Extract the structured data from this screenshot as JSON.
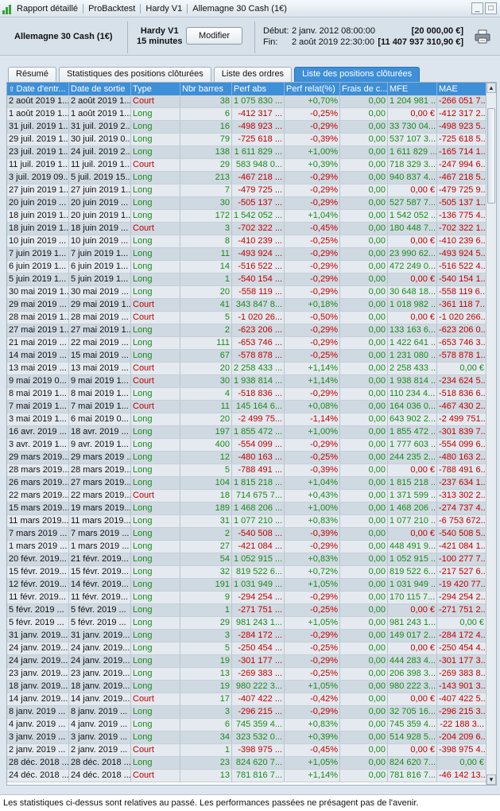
{
  "titlebar": {
    "crumbs": [
      "Rapport détaillé",
      "ProBacktest",
      "Hardy V1",
      "Allemagne 30 Cash (1€)"
    ],
    "buttons": [
      "_",
      "□"
    ]
  },
  "header": {
    "instrument": "Allemagne 30 Cash (1€)",
    "strategy_name": "Hardy V1",
    "timeframe": "15 minutes",
    "modify_label": "Modifier",
    "start_label": "Début:",
    "start_date": "2 janv. 2012 08:00:00",
    "end_label": "Fin:",
    "end_date": "2 août 2019 22:30:00",
    "start_capital": "[20 000,00 €]",
    "end_capital": "[11 407 937 310,90 €]"
  },
  "tabs": [
    {
      "label": "Résumé",
      "active": false
    },
    {
      "label": "Statistiques des positions clôturées",
      "active": false
    },
    {
      "label": "Liste des ordres",
      "active": false
    },
    {
      "label": "Liste des positions clôturées",
      "active": true
    }
  ],
  "table": {
    "columns": [
      "Date d'entr...",
      "Date de sortie",
      "Type",
      "Nbr barres",
      "Perf abs",
      "Perf relat(%)",
      "Frais de c...",
      "MFE",
      "MAE"
    ],
    "rows": [
      [
        "2 août 2019 1...",
        "2 août 2019 1...",
        "Court",
        "38",
        "1 075 830 ...",
        "+0,70%",
        "0,00",
        "1 204 981 ...",
        "-266 051 7..."
      ],
      [
        "1 août 2019 1...",
        "1 août 2019 1...",
        "Long",
        "6",
        "-412 317 ...",
        "-0,25%",
        "0,00",
        "0,00 €",
        "-412 317 2..."
      ],
      [
        "31 juil. 2019 1...",
        "31 juil. 2019 2...",
        "Long",
        "16",
        "-498 923 ...",
        "-0,29%",
        "0,00",
        "33 730 04...",
        "-498 923 5..."
      ],
      [
        "29 juil. 2019 1...",
        "30 juil. 2019 0...",
        "Long",
        "79",
        "-725 618 ...",
        "-0,39%",
        "0,00",
        "537 107 3...",
        "-725 618 5..."
      ],
      [
        "23 juil. 2019 1...",
        "24 juil. 2019 2...",
        "Long",
        "138",
        "1 611 829 ...",
        "+1,00%",
        "0,00",
        "1 611 829 ...",
        "-165 714 1..."
      ],
      [
        "11 juil. 2019 1...",
        "11 juil. 2019 1...",
        "Court",
        "29",
        "583 948 0...",
        "+0,39%",
        "0,00",
        "718 329 3...",
        "-247 994 6..."
      ],
      [
        "3 juil. 2019 09...",
        "5 juil. 2019 15...",
        "Long",
        "213",
        "-467 218 ...",
        "-0,29%",
        "0,00",
        "940 837 4...",
        "-467 218 5..."
      ],
      [
        "27 juin 2019 1...",
        "27 juin 2019 1...",
        "Long",
        "7",
        "-479 725 ...",
        "-0,29%",
        "0,00",
        "0,00 €",
        "-479 725 9..."
      ],
      [
        "20 juin 2019 ...",
        "20 juin 2019 ...",
        "Long",
        "30",
        "-505 137 ...",
        "-0,29%",
        "0,00",
        "527 587 7...",
        "-505 137 1..."
      ],
      [
        "18 juin 2019 1...",
        "20 juin 2019 1...",
        "Long",
        "172",
        "1 542 052 ...",
        "+1,04%",
        "0,00",
        "1 542 052 ...",
        "-136 775 4..."
      ],
      [
        "18 juin 2019 1...",
        "18 juin 2019 ...",
        "Court",
        "3",
        "-702 322 ...",
        "-0,45%",
        "0,00",
        "180 448 7...",
        "-702 322 1..."
      ],
      [
        "10 juin 2019 ...",
        "10 juin 2019 ...",
        "Long",
        "8",
        "-410 239 ...",
        "-0,25%",
        "0,00",
        "0,00 €",
        "-410 239 6..."
      ],
      [
        "7 juin 2019 1...",
        "7 juin 2019 1...",
        "Long",
        "11",
        "-493 924 ...",
        "-0,29%",
        "0,00",
        "23 990 62...",
        "-493 924 5..."
      ],
      [
        "6 juin 2019 1...",
        "6 juin 2019 1...",
        "Long",
        "14",
        "-516 522 ...",
        "-0,29%",
        "0,00",
        "472 249 0...",
        "-516 522 4..."
      ],
      [
        "5 juin 2019 1...",
        "5 juin 2019 1...",
        "Long",
        "1",
        "-540 154 ...",
        "-0,29%",
        "0,00",
        "0,00 €",
        "-540 154 1..."
      ],
      [
        "30 mai 2019 1...",
        "30 mai 2019 ...",
        "Long",
        "20",
        "-558 119 ...",
        "-0,29%",
        "0,00",
        "30 648 18...",
        "-558 119 6..."
      ],
      [
        "29 mai 2019 ...",
        "29 mai 2019 1...",
        "Court",
        "41",
        "343 847 8...",
        "+0,18%",
        "0,00",
        "1 018 982 ...",
        "-361 118 7..."
      ],
      [
        "28 mai 2019 1...",
        "28 mai 2019 ...",
        "Court",
        "5",
        "-1 020 26...",
        "-0,50%",
        "0,00",
        "0,00 €",
        "-1 020 266..."
      ],
      [
        "27 mai 2019 1...",
        "27 mai 2019 1...",
        "Long",
        "2",
        "-623 206 ...",
        "-0,29%",
        "0,00",
        "133 163 6...",
        "-623 206 0..."
      ],
      [
        "21 mai 2019 ...",
        "22 mai 2019 ...",
        "Long",
        "111",
        "-653 746 ...",
        "-0,29%",
        "0,00",
        "1 422 641 ...",
        "-653 746 3..."
      ],
      [
        "14 mai 2019 ...",
        "15 mai 2019 ...",
        "Long",
        "67",
        "-578 878 ...",
        "-0,25%",
        "0,00",
        "1 231 080 ...",
        "-578 878 1..."
      ],
      [
        "13 mai 2019 ...",
        "13 mai 2019 ...",
        "Court",
        "20",
        "2 258 433 ...",
        "+1,14%",
        "0,00",
        "2 258 433 ...",
        "0,00 €"
      ],
      [
        "9 mai 2019 0...",
        "9 mai 2019 1...",
        "Court",
        "30",
        "1 938 814 ...",
        "+1,14%",
        "0,00",
        "1 938 814 ...",
        "-234 624 5..."
      ],
      [
        "8 mai 2019 1...",
        "8 mai 2019 1...",
        "Long",
        "4",
        "-518 836 ...",
        "-0,29%",
        "0,00",
        "110 234 4...",
        "-518 836 6..."
      ],
      [
        "7 mai 2019 1...",
        "7 mai 2019 1...",
        "Court",
        "11",
        "145 164 6...",
        "+0,08%",
        "0,00",
        "164 036 0...",
        "-467 430 2..."
      ],
      [
        "3 mai 2019 1...",
        "6 mai 2019 0...",
        "Long",
        "20",
        "-2 499 75...",
        "-1,14%",
        "0,00",
        "643 902 2...",
        "-2 499 751..."
      ],
      [
        "16 avr. 2019 ...",
        "18 avr. 2019 ...",
        "Long",
        "197",
        "1 855 472 ...",
        "+1,00%",
        "0,00",
        "1 855 472 ...",
        "-301 839 7..."
      ],
      [
        "3 avr. 2019 1...",
        "9 avr. 2019 1...",
        "Long",
        "400",
        "-554 099 ...",
        "-0,29%",
        "0,00",
        "1 777 603 ...",
        "-554 099 6..."
      ],
      [
        "29 mars 2019...",
        "29 mars 2019 ...",
        "Long",
        "12",
        "-480 163 ...",
        "-0,25%",
        "0,00",
        "244 235 2...",
        "-480 163 2..."
      ],
      [
        "28 mars 2019...",
        "28 mars 2019...",
        "Long",
        "5",
        "-788 491 ...",
        "-0,39%",
        "0,00",
        "0,00 €",
        "-788 491 6..."
      ],
      [
        "26 mars 2019...",
        "27 mars 2019...",
        "Long",
        "104",
        "1 815 218 ...",
        "+1,04%",
        "0,00",
        "1 815 218 ...",
        "-237 634 1..."
      ],
      [
        "22 mars 2019...",
        "22 mars 2019...",
        "Court",
        "18",
        "714 675 7...",
        "+0,43%",
        "0,00",
        "1 371 599 ...",
        "-313 302 2..."
      ],
      [
        "15 mars 2019...",
        "19 mars 2019...",
        "Long",
        "189",
        "1 468 206 ...",
        "+1,00%",
        "0,00",
        "1 468 206 ...",
        "-274 737 4..."
      ],
      [
        "11 mars 2019...",
        "11 mars 2019...",
        "Long",
        "31",
        "1 077 210 ...",
        "+0,83%",
        "0,00",
        "1 077 210 ...",
        "-6 753 672..."
      ],
      [
        "7 mars 2019 ...",
        "7 mars 2019 ...",
        "Long",
        "2",
        "-540 508 ...",
        "-0,39%",
        "0,00",
        "0,00 €",
        "-540 508 5..."
      ],
      [
        "1 mars 2019 ...",
        "1 mars 2019 ...",
        "Long",
        "27",
        "-421 084 ...",
        "-0,29%",
        "0,00",
        "448 491 9...",
        "-421 084 1..."
      ],
      [
        "20 févr. 2019...",
        "21 févr. 2019...",
        "Long",
        "54",
        "1 052 915 ...",
        "+0,83%",
        "0,00",
        "1 052 915 ...",
        "-100 277 7..."
      ],
      [
        "15 févr. 2019...",
        "15 févr. 2019...",
        "Long",
        "32",
        "819 522 6...",
        "+0,72%",
        "0,00",
        "819 522 6...",
        "-217 527 6..."
      ],
      [
        "12 févr. 2019...",
        "14 févr. 2019...",
        "Long",
        "191",
        "1 031 949 ...",
        "+1,05%",
        "0,00",
        "1 031 949 ...",
        "-19 420 77..."
      ],
      [
        "11 févr. 2019...",
        "11 févr. 2019...",
        "Long",
        "9",
        "-294 254 ...",
        "-0,29%",
        "0,00",
        "170 115 7...",
        "-294 254 2..."
      ],
      [
        "5 févr. 2019 ...",
        "5 févr. 2019 ...",
        "Long",
        "1",
        "-271 751 ...",
        "-0,25%",
        "0,00",
        "0,00 €",
        "-271 751 2..."
      ],
      [
        "5 févr. 2019 ...",
        "5 févr. 2019 ...",
        "Long",
        "29",
        "981 243 1...",
        "+1,05%",
        "0,00",
        "981 243 1...",
        "0,00 €"
      ],
      [
        "31 janv. 2019...",
        "31 janv. 2019...",
        "Long",
        "3",
        "-284 172 ...",
        "-0,29%",
        "0,00",
        "149 017 2...",
        "-284 172 4..."
      ],
      [
        "24 janv. 2019...",
        "24 janv. 2019...",
        "Long",
        "5",
        "-250 454 ...",
        "-0,25%",
        "0,00",
        "0,00 €",
        "-250 454 4..."
      ],
      [
        "24 janv. 2019...",
        "24 janv. 2019...",
        "Long",
        "19",
        "-301 177 ...",
        "-0,29%",
        "0,00",
        "444 283 4...",
        "-301 177 3..."
      ],
      [
        "23 janv. 2019...",
        "23 janv. 2019...",
        "Long",
        "13",
        "-269 383 ...",
        "-0,25%",
        "0,00",
        "206 398 3...",
        "-269 383 8..."
      ],
      [
        "18 janv. 2019...",
        "18 janv. 2019...",
        "Long",
        "19",
        "980 222 3...",
        "+1,05%",
        "0,00",
        "980 222 3...",
        "-143 901 3..."
      ],
      [
        "14 janv. 2019...",
        "14 janv. 2019...",
        "Court",
        "17",
        "-407 422 ...",
        "-0,42%",
        "0,00",
        "0,00 €",
        "-407 422 5..."
      ],
      [
        "8 janv. 2019 ...",
        "8 janv. 2019 ...",
        "Long",
        "3",
        "-296 215 ...",
        "-0,29%",
        "0,00",
        "32 705 16...",
        "-296 215 3..."
      ],
      [
        "4 janv. 2019 ...",
        "4 janv. 2019 ...",
        "Long",
        "6",
        "745 359 4...",
        "+0,83%",
        "0,00",
        "745 359 4...",
        "-22 188 3..."
      ],
      [
        "3 janv. 2019 ...",
        "3 janv. 2019 ...",
        "Long",
        "34",
        "323 532 0...",
        "+0,39%",
        "0,00",
        "514 928 5...",
        "-204 209 6..."
      ],
      [
        "2 janv. 2019 ...",
        "2 janv. 2019 ...",
        "Court",
        "1",
        "-398 975 ...",
        "-0,45%",
        "0,00",
        "0,00 €",
        "-398 975 4..."
      ],
      [
        "28 déc. 2018 ...",
        "28 déc. 2018 ...",
        "Long",
        "23",
        "824 620 7...",
        "+1,05%",
        "0,00",
        "824 620 7...",
        "0,00 €"
      ],
      [
        "24 déc. 2018 ...",
        "24 déc. 2018 ...",
        "Court",
        "13",
        "781 816 7...",
        "+1,14%",
        "0,00",
        "781 816 7...",
        "-46 142 13..."
      ]
    ]
  },
  "footer": {
    "disclaimer": "Les statistiques ci-dessus sont relatives au passé. Les performances passées ne présagent pas de l'avenir."
  },
  "colors": {
    "tab_active": "#3d8fd8",
    "positive": "#1a8a1a",
    "negative": "#c00000",
    "row_odd": "#cfd9e1",
    "row_even": "#e4eaef"
  },
  "icons": [
    "app-icon",
    "printer-icon",
    "minimize-icon",
    "maximize-icon",
    "sort-up-icon",
    "scroll-up-icon",
    "scroll-down-icon"
  ]
}
